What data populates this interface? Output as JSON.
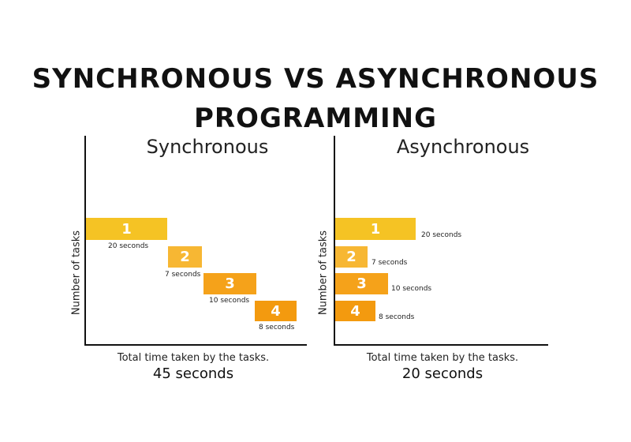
{
  "title": {
    "line1": "SYNCHRONOUS  VS ASYNCHRONOUS",
    "line2": "PROGRAMMING"
  },
  "sync": {
    "title": "Synchronous",
    "ylabel": "Number of tasks",
    "footer_caption": "Total time taken by the tasks.",
    "footer_total": "45 seconds",
    "tasks": [
      {
        "label": "1",
        "duration": "20 seconds"
      },
      {
        "label": "2",
        "duration": "7 seconds"
      },
      {
        "label": "3",
        "duration": "10 seconds"
      },
      {
        "label": "4",
        "duration": "8 seconds"
      }
    ]
  },
  "async": {
    "title": "Asynchronous",
    "ylabel": "Number of tasks",
    "footer_caption": "Total time taken by the tasks.",
    "footer_total": "20 seconds",
    "tasks": [
      {
        "label": "1",
        "duration": "20 seconds"
      },
      {
        "label": "2",
        "duration": "7 seconds"
      },
      {
        "label": "3",
        "duration": "10 seconds"
      },
      {
        "label": "4",
        "duration": "8 seconds"
      }
    ]
  },
  "colors": {
    "task1": "#f5c324",
    "task2": "#f7b733",
    "task3": "#f5a21a",
    "task4": "#f39a0f"
  }
}
